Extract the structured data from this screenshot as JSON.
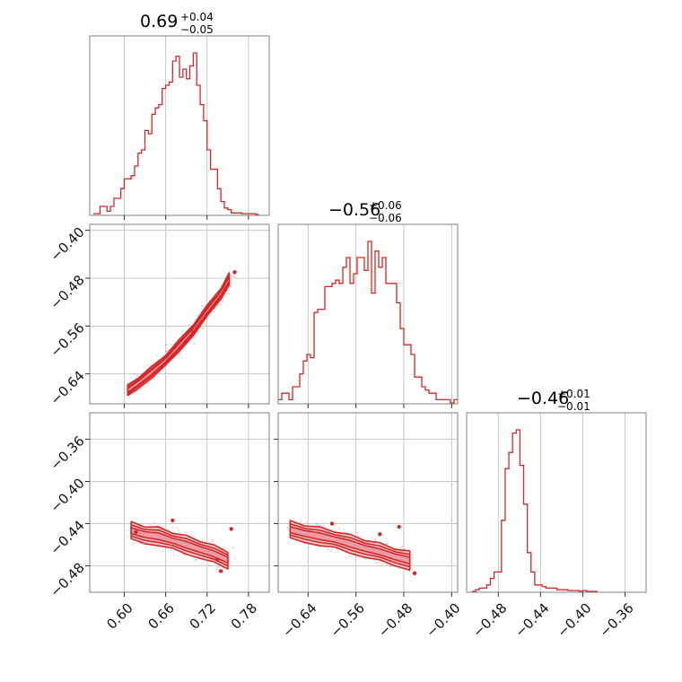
{
  "colors": {
    "accent": "#d62728",
    "fill": "#f2b8bd",
    "fill_dark": "#e8868f",
    "grid": "#c8c8c8",
    "frame": "#808080"
  },
  "chart_data": {
    "type": "corner",
    "params": [
      {
        "id": "p0",
        "range": [
          0.55,
          0.81
        ],
        "ticks": [
          0.6,
          0.66,
          0.72,
          0.78
        ],
        "tick_labels": [
          "0.60",
          "0.66",
          "0.72",
          "0.78"
        ],
        "title": {
          "main": "0.69",
          "sup": "+0.04",
          "sub": "−0.05"
        }
      },
      {
        "id": "p1",
        "range": [
          -0.69,
          -0.39
        ],
        "ticks": [
          -0.64,
          -0.56,
          -0.48,
          -0.4
        ],
        "tick_labels": [
          "−0.64",
          "−0.56",
          "−0.48",
          "−0.40"
        ],
        "row_ticks": [
          -0.64,
          -0.56,
          -0.48,
          -0.4
        ],
        "row_tick_labels": [
          "−0.64",
          "−0.56",
          "−0.48",
          "−0.40"
        ],
        "row_range": [
          -0.69,
          -0.39
        ],
        "title": {
          "main": "−0.56",
          "sup": "+0.06",
          "sub": "−0.06"
        }
      },
      {
        "id": "p2",
        "range": [
          -0.51,
          -0.34
        ],
        "ticks": [
          -0.48,
          -0.44,
          -0.4,
          -0.36
        ],
        "tick_labels": [
          "−0.48",
          "−0.44",
          "−0.40",
          "−0.36"
        ],
        "row_range": [
          -0.505,
          -0.335
        ],
        "row_ticks": [
          -0.48,
          -0.44,
          -0.4,
          -0.36
        ],
        "row_tick_labels": [
          "−0.48",
          "−0.44",
          "−0.40",
          "−0.36"
        ],
        "title": {
          "main": "−0.46",
          "sup": "+0.01",
          "sub": "−0.01"
        }
      }
    ],
    "histograms": [
      {
        "param": 0,
        "bins": [
          0.555,
          0.56,
          0.565,
          0.57,
          0.575,
          0.58,
          0.585,
          0.59,
          0.595,
          0.6,
          0.605,
          0.61,
          0.615,
          0.62,
          0.625,
          0.63,
          0.635,
          0.64,
          0.645,
          0.65,
          0.655,
          0.66,
          0.665,
          0.67,
          0.675,
          0.68,
          0.685,
          0.69,
          0.695,
          0.7,
          0.705,
          0.71,
          0.715,
          0.72,
          0.725,
          0.73,
          0.735,
          0.74,
          0.745,
          0.75,
          0.755,
          0.76,
          0.765,
          0.77,
          0.775,
          0.78,
          0.785,
          0.79
        ],
        "heights": [
          0.005,
          0.005,
          0.05,
          0.05,
          0.02,
          0.05,
          0.1,
          0.1,
          0.16,
          0.22,
          0.22,
          0.24,
          0.3,
          0.38,
          0.4,
          0.52,
          0.5,
          0.62,
          0.66,
          0.68,
          0.78,
          0.8,
          0.82,
          0.95,
          0.98,
          0.85,
          0.9,
          0.84,
          0.92,
          1.0,
          0.8,
          0.68,
          0.58,
          0.4,
          0.28,
          0.28,
          0.16,
          0.08,
          0.04,
          0.03,
          0.01,
          0.01,
          0.01,
          0.005,
          0.005,
          0.005,
          0.005,
          0.0
        ]
      },
      {
        "param": 1,
        "bins": [
          -0.69,
          -0.684,
          -0.678,
          -0.672,
          -0.666,
          -0.66,
          -0.654,
          -0.648,
          -0.642,
          -0.636,
          -0.63,
          -0.624,
          -0.618,
          -0.612,
          -0.606,
          -0.6,
          -0.594,
          -0.588,
          -0.582,
          -0.576,
          -0.57,
          -0.564,
          -0.558,
          -0.552,
          -0.546,
          -0.54,
          -0.534,
          -0.528,
          -0.522,
          -0.516,
          -0.51,
          -0.504,
          -0.498,
          -0.492,
          -0.486,
          -0.48,
          -0.474,
          -0.468,
          -0.462,
          -0.456,
          -0.45,
          -0.444,
          -0.438,
          -0.432,
          -0.426,
          -0.42,
          -0.414,
          -0.408,
          -0.402,
          -0.396
        ],
        "heights": [
          0.02,
          0.06,
          0.06,
          0.02,
          0.1,
          0.1,
          0.18,
          0.26,
          0.3,
          0.28,
          0.56,
          0.58,
          0.58,
          0.72,
          0.72,
          0.74,
          0.76,
          0.74,
          0.84,
          0.9,
          0.74,
          0.8,
          0.9,
          0.9,
          0.82,
          1.0,
          0.68,
          0.94,
          0.84,
          0.9,
          0.74,
          0.74,
          0.74,
          0.62,
          0.46,
          0.36,
          0.36,
          0.3,
          0.16,
          0.16,
          0.1,
          0.08,
          0.06,
          0.06,
          0.02,
          0.02,
          0.02,
          0.02,
          0.0,
          0.02
        ]
      },
      {
        "param": 2,
        "bins": [
          -0.505,
          -0.5015,
          -0.498,
          -0.4945,
          -0.491,
          -0.4875,
          -0.484,
          -0.4805,
          -0.477,
          -0.4735,
          -0.47,
          -0.4665,
          -0.463,
          -0.4595,
          -0.456,
          -0.4525,
          -0.449,
          -0.4455,
          -0.442,
          -0.4385,
          -0.435,
          -0.4315,
          -0.428,
          -0.4245,
          -0.421,
          -0.4175,
          -0.414,
          -0.4105,
          -0.407,
          -0.4035,
          -0.4,
          -0.3965,
          -0.393,
          -0.3895
        ],
        "heights": [
          0.0,
          0.01,
          0.02,
          0.02,
          0.04,
          0.08,
          0.12,
          0.12,
          0.44,
          0.76,
          0.86,
          0.98,
          1.0,
          0.78,
          0.54,
          0.24,
          0.12,
          0.04,
          0.04,
          0.03,
          0.02,
          0.02,
          0.02,
          0.01,
          0.01,
          0.01,
          0.005,
          0.005,
          0.005,
          0.0,
          0.005,
          0.0,
          0.0,
          0.0
        ]
      }
    ],
    "pairs": [
      {
        "x_param": 0,
        "y_param": 1,
        "ridge_x": [
          0.605,
          0.62,
          0.64,
          0.66,
          0.68,
          0.7,
          0.72,
          0.74,
          0.752
        ],
        "ridge_y": [
          -0.668,
          -0.655,
          -0.637,
          -0.617,
          -0.592,
          -0.566,
          -0.535,
          -0.505,
          -0.481
        ],
        "half_width_y": 0.01,
        "outlier_x": [
          0.607,
          0.76,
          0.63,
          0.7
        ],
        "outlier_y": [
          -0.672,
          -0.47,
          -0.64,
          -0.57
        ]
      },
      {
        "x_param": 0,
        "y_param": 2,
        "ridge_x": [
          0.61,
          0.63,
          0.65,
          0.67,
          0.69,
          0.71,
          0.73,
          0.75
        ],
        "ridge_y": [
          -0.447,
          -0.45,
          -0.452,
          -0.456,
          -0.46,
          -0.464,
          -0.469,
          -0.474
        ],
        "half_width_y": 0.009,
        "outlier_x": [
          0.67,
          0.755,
          0.617,
          0.735,
          0.74
        ],
        "outlier_y": [
          -0.437,
          -0.445,
          -0.448,
          -0.474,
          -0.485
        ]
      },
      {
        "x_param": 1,
        "y_param": 2,
        "ridge_x": [
          -0.67,
          -0.645,
          -0.62,
          -0.595,
          -0.57,
          -0.545,
          -0.52,
          -0.495,
          -0.47
        ],
        "ridge_y": [
          -0.446,
          -0.449,
          -0.452,
          -0.455,
          -0.459,
          -0.463,
          -0.467,
          -0.471,
          -0.475
        ],
        "half_width_y": 0.009,
        "outlier_x": [
          -0.488,
          -0.462,
          -0.6,
          -0.52
        ],
        "outlier_y": [
          -0.443,
          -0.487,
          -0.44,
          -0.45
        ]
      }
    ]
  }
}
